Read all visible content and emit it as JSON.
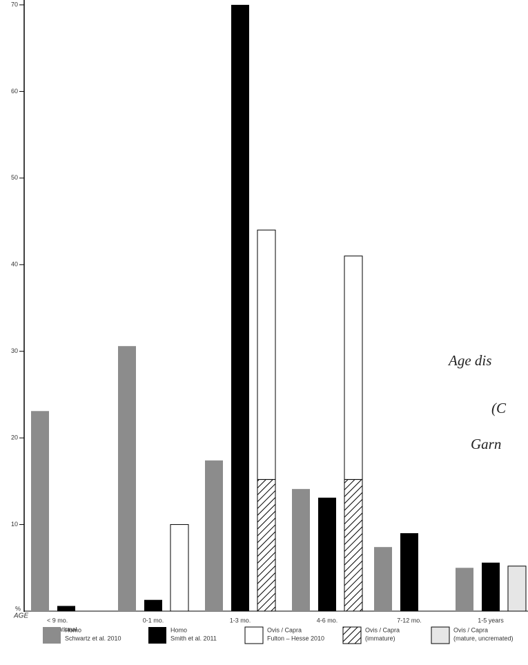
{
  "chart_data": {
    "type": "bar",
    "categories": [
      "< 9 mo.",
      "0-1 mo.",
      "1-3 mo.",
      "4-6 mo.",
      "7-12 mo.",
      "1-5 years"
    ],
    "category_note": "gestational",
    "x_label": "AGE",
    "y_label": "%",
    "ylim": [
      0,
      70
    ],
    "yticks": [
      10,
      20,
      30,
      40,
      50,
      60,
      70
    ],
    "series": [
      {
        "name": "Homo",
        "sublabel": "Schwartz et al. 2010",
        "color": "#8c8c8c",
        "slot": 0,
        "values": [
          23.1,
          30.6,
          17.4,
          14.1,
          7.4,
          5.0
        ]
      },
      {
        "name": "Homo",
        "sublabel": "Smith et al. 2011",
        "color": "#000000",
        "slot": 1,
        "values": [
          0.6,
          1.3,
          70,
          13.1,
          9.0,
          5.6
        ]
      },
      {
        "name": "Ovis / Capra",
        "sublabel": "(immature)",
        "color": "hatch",
        "slot": 2,
        "values": [
          null,
          null,
          15.2,
          15.2,
          null,
          null
        ]
      },
      {
        "name": "Ovis / Capra",
        "sublabel": "Fulton – Hesse 2010",
        "color": "#ffffff",
        "slot": 2,
        "stacked": true,
        "values": [
          null,
          10.0,
          28.8,
          25.8,
          null,
          null
        ]
      },
      {
        "name": "Ovis / Capra",
        "sublabel": "(mature, uncremated)",
        "color": "#e6e6e6",
        "slot": 2,
        "values": [
          null,
          null,
          null,
          null,
          null,
          5.2
        ]
      }
    ],
    "legend_order": [
      0,
      1,
      3,
      2,
      4
    ],
    "annotations": [
      "Age dis",
      "(C",
      "Garn"
    ]
  }
}
